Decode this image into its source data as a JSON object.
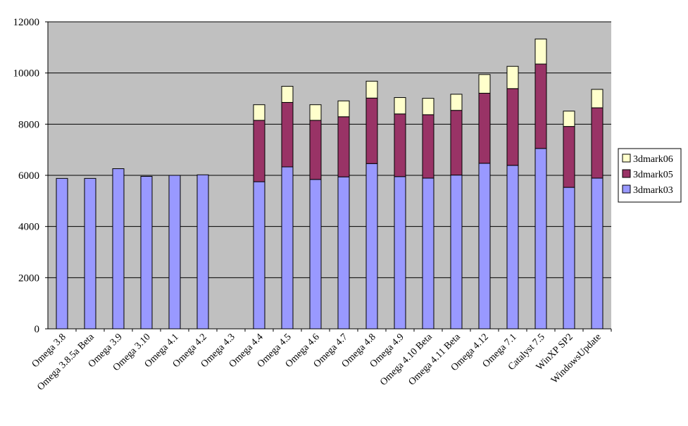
{
  "chart_data": {
    "type": "bar",
    "stacked": true,
    "categories": [
      "Omega 3.8",
      "Omega 3.8.5a Beta",
      "Omega 3.9",
      "Omega 3.10",
      "Omega 4.1",
      "Omega 4.2",
      "Omega 4.3",
      "Omega 4.4",
      "Omega 4.5",
      "Omega 4.6",
      "Omega 4.7",
      "Omega 4.8",
      "Omega 4.9",
      "Omega 4.10 Beta",
      "Omega 4.11 Beta",
      "Omega 4.12",
      "Omega 7.1",
      "Catalyst 7.5",
      "WinXP SP2",
      "WindowsUpdate"
    ],
    "series": [
      {
        "name": "3dmark03",
        "color": "#9999ff",
        "values": [
          5880,
          5880,
          6260,
          5960,
          6000,
          6020,
          0,
          5750,
          6330,
          5840,
          5940,
          6460,
          5950,
          5890,
          6010,
          6470,
          6390,
          7050,
          5530,
          5890
        ]
      },
      {
        "name": "3dmark05",
        "color": "#993366",
        "values": [
          0,
          0,
          0,
          0,
          0,
          0,
          0,
          2400,
          2520,
          2310,
          2350,
          2560,
          2450,
          2480,
          2530,
          2740,
          3000,
          3300,
          2380,
          2750
        ]
      },
      {
        "name": "3dmark06",
        "color": "#ffffcc",
        "values": [
          0,
          0,
          0,
          0,
          0,
          0,
          0,
          610,
          630,
          610,
          620,
          660,
          640,
          640,
          630,
          730,
          870,
          980,
          600,
          720
        ]
      }
    ],
    "y_ticks": [
      "0",
      "2000",
      "4000",
      "6000",
      "8000",
      "10000",
      "12000"
    ],
    "ylim": [
      0,
      12000
    ],
    "grid": true,
    "legend_position": "right",
    "plot_background": "#c0c0c0",
    "title": "",
    "xlabel": "",
    "ylabel": ""
  }
}
